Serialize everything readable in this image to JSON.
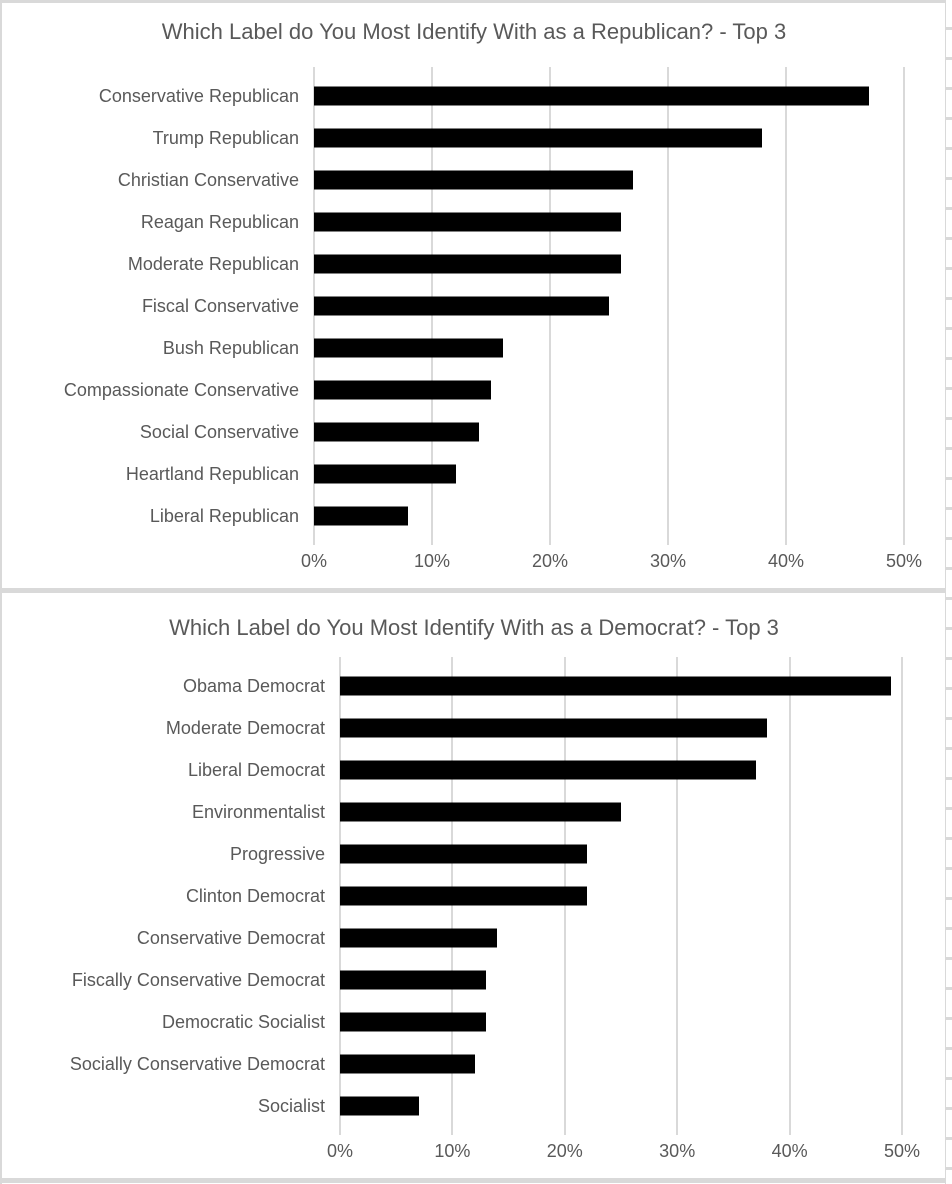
{
  "colors": {
    "bar": "#000000",
    "text": "#595959",
    "gridline": "#d9d9d9",
    "background": "#ffffff",
    "border": "#d9d9d9"
  },
  "chart_data": [
    {
      "type": "bar",
      "orientation": "horizontal",
      "title": "Which Label do You Most Identify With as a Republican? - Top 3",
      "categories": [
        "Conservative Republican",
        "Trump Republican",
        "Christian Conservative",
        "Reagan Republican",
        "Moderate Republican",
        "Fiscal Conservative",
        "Bush Republican",
        "Compassionate Conservative",
        "Social Conservative",
        "Heartland Republican",
        "Liberal Republican"
      ],
      "values": [
        47,
        38,
        27,
        26,
        26,
        25,
        16,
        15,
        14,
        12,
        8
      ],
      "unit": "%",
      "xlabel": "",
      "ylabel": "",
      "xlim": [
        0,
        50
      ],
      "x_ticks": [
        "0%",
        "10%",
        "20%",
        "30%",
        "40%",
        "50%"
      ],
      "grid": true,
      "legend": false,
      "bar_color": "#000000"
    },
    {
      "type": "bar",
      "orientation": "horizontal",
      "title": "Which Label do You Most Identify With as a Democrat? - Top 3",
      "categories": [
        "Obama Democrat",
        "Moderate Democrat",
        "Liberal Democrat",
        "Environmentalist",
        "Progressive",
        "Clinton Democrat",
        "Conservative Democrat",
        "Fiscally Conservative Democrat",
        "Democratic Socialist",
        "Socially Conservative Democrat",
        "Socialist"
      ],
      "values": [
        49,
        38,
        37,
        25,
        22,
        22,
        14,
        13,
        13,
        12,
        7
      ],
      "unit": "%",
      "xlabel": "",
      "ylabel": "",
      "xlim": [
        0,
        50
      ],
      "x_ticks": [
        "0%",
        "10%",
        "20%",
        "30%",
        "40%",
        "50%"
      ],
      "grid": true,
      "legend": false,
      "bar_color": "#000000"
    }
  ]
}
